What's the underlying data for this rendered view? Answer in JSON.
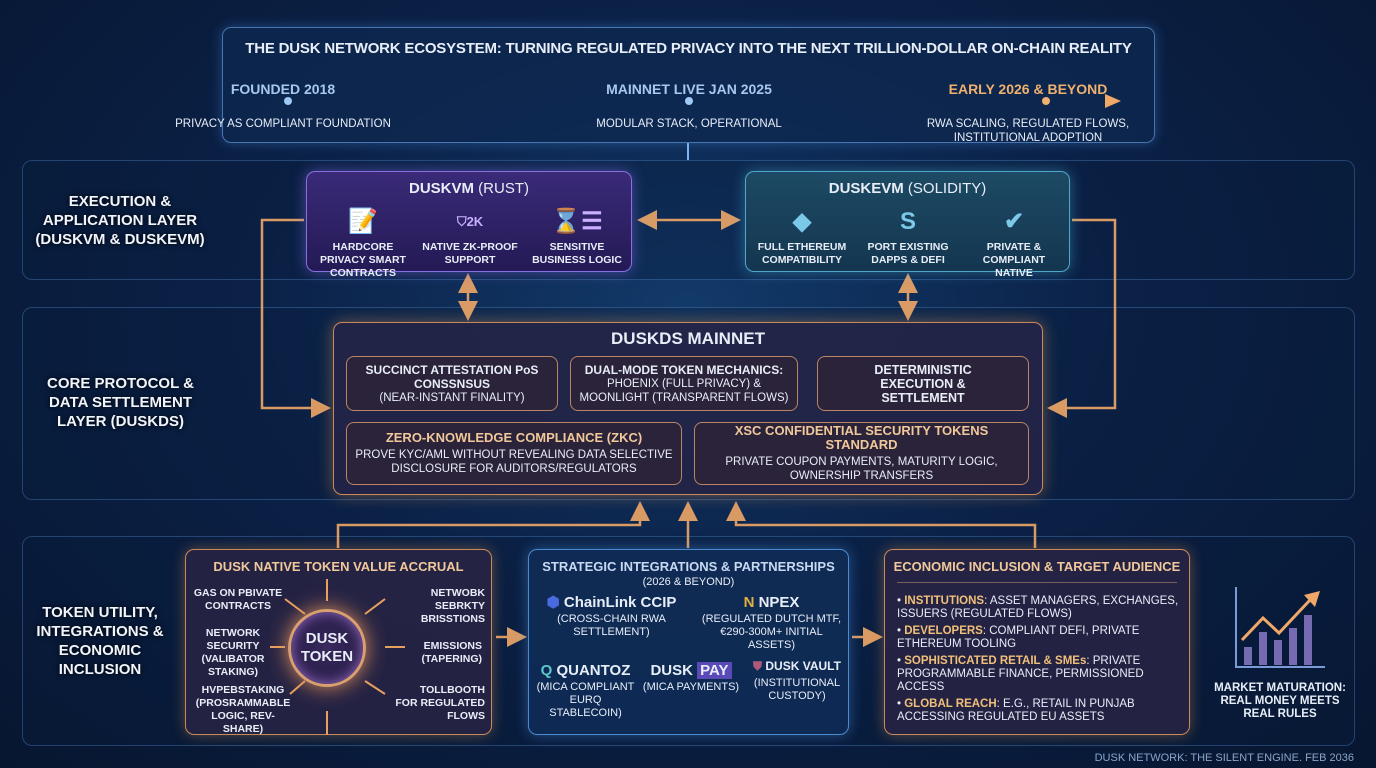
{
  "header": {
    "title": "THE DUSK NETWORK ECOSYSTEM: TURNING REGULATED PRIVACY INTO THE NEXT TRILLION-DOLLAR ON-CHAIN REALITY",
    "timeline": [
      {
        "label": "FOUNDED 2018",
        "desc": "PRIVACY AS COMPLIANT FOUNDATION"
      },
      {
        "label": "MAINNET LIVE JAN 2025",
        "desc": "MODULAR STACK, OPERATIONAL"
      },
      {
        "label": "EARLY 2026 & BEYOND",
        "desc": "RWA SCALING, REGULATED FLOWS, INSTITUTIONAL ADOPTION"
      }
    ]
  },
  "layers": {
    "execution": "EXECUTION & APPLICATION LAYER (DUSKVM & DUSKEVM)",
    "core": "CORE PROTOCOL & DATA SETTLEMENT LAYER (DUSKDS)",
    "token": "TOKEN UTILITY, INTEGRATIONS & ECONOMIC INCLUSION"
  },
  "duskvm": {
    "name": "DUSKVM",
    "lang": "(RUST)",
    "features": [
      {
        "icon": "contract-icon",
        "label": "HARDCORE PRIVACY SMART CONTRACTS"
      },
      {
        "icon": "zk-shield-icon",
        "label": "NATIVE ZK-PROOF SUPPORT"
      },
      {
        "icon": "business-logic-icon",
        "label": "SENSITIVE BUSINESS LOGIC"
      }
    ]
  },
  "duskevm": {
    "name": "DUSKEVM",
    "lang": "(SOLIDITY)",
    "features": [
      {
        "icon": "ethereum-icon",
        "label": "FULL ETHEREUM COMPATIBILITY"
      },
      {
        "icon": "port-icon",
        "label": "PORT EXISTING DAPPS & DEFI"
      },
      {
        "icon": "shield-check-icon",
        "label": "PRIVATE & COMPLIANT NATIVE"
      }
    ]
  },
  "mainnet": {
    "title": "DUSKDS MAINNET",
    "cells": [
      {
        "title": "SUCCINCT ATTESTATION PoS CONSSNSUS",
        "desc": "(NEAR-INSTANT FINALITY)"
      },
      {
        "title": "DUAL-MODE TOKEN MECHANICS:",
        "desc": "PHOENIX (FULL PRIVACY) & MOONLIGHT (TRANSPARENT FLOWS)"
      },
      {
        "title": "DETERMINISTIC EXECUTION & SETTLEMENT",
        "desc": ""
      },
      {
        "title": "ZERO-KNOWLEDGE COMPLIANCE (ZKC)",
        "desc": "PROVE KYC/AML WITHOUT REVEALING DATA SELECTIVE DISCLOSURE FOR AUDITORS/REGULATORS"
      },
      {
        "title": "XSC CONFIDENTIAL SECURITY TOKENS STANDARD",
        "desc": "PRIVATE COUPON PAYMENTS, MATURITY LOGIC, OWNERSHIP TRANSFERS"
      }
    ]
  },
  "token": {
    "title": "DUSK NATIVE TOKEN VALUE ACCRUAL",
    "center": "DUSK TOKEN",
    "items": [
      "GAS ON PBIVATE CONTRACTS",
      "NETWORK SECURITY (VALIBATOR STAKING)",
      "HVPEBSTAKING (PROSRAMMABLE LOGIC, REV-SHARE)",
      "NETWOBK SEBRKTY BRISSTIONS",
      "EMISSIONS (TAPERING)",
      "TOLLBOOTH FOR REGULATED FLOWS"
    ]
  },
  "integrations": {
    "title": "STRATEGIC INTEGRATIONS & PARTNERSHIPS",
    "subtitle": "(2026 & BEYOND)",
    "partners": [
      {
        "name": "ChainLink CCIP",
        "desc": "(CROSS-CHAIN RWA SETTLEMENT)"
      },
      {
        "name": "NPEX",
        "desc": "(REGULATED DUTCH MTF, €290-300M+ INITIAL ASSETS)"
      },
      {
        "name": "QUANTOZ",
        "desc": "(MICA COMPLIANT EURQ STABLECOIN)"
      },
      {
        "name": "DUSK",
        "name2": "PAY",
        "desc": "(MICA PAYMENTS)"
      },
      {
        "name": "DUSK VAULT",
        "desc": "(INSTITUTIONAL CUSTODY)"
      }
    ]
  },
  "economic": {
    "title": "ECONOMIC INCLUSION & TARGET AUDIENCE",
    "items": [
      {
        "key": "INSTITUTIONS",
        "text": ": ASSET MANAGERS, EXCHANGES, ISSUERS (REGULATED FLOWS)"
      },
      {
        "key": "DEVELOPERS",
        "text": ": COMPLIANT DEFI, PRIVATE ETHEREUM TOOLING"
      },
      {
        "key": "SOPHISTICATED RETAIL & SMEs",
        "text": ": PRIVATE PROGRAMMABLE FINANCE, PERMISSIONED ACCESS"
      },
      {
        "key": "GLOBAL REACH",
        "text": ": E.G., RETAIL IN PUNJAB ACCESSING REGULATED EU ASSETS"
      }
    ]
  },
  "market": {
    "caption": "MARKET MATURATION: REAL MONEY MEETS REAL RULES"
  },
  "footer": "DUSK NETWORK: THE SILENT ENGINE. FEB 2036",
  "colors": {
    "accent": "#f0a868",
    "purple": "#8a6fe0",
    "teal": "#4fa8c8",
    "blue": "#4a8ad0"
  }
}
